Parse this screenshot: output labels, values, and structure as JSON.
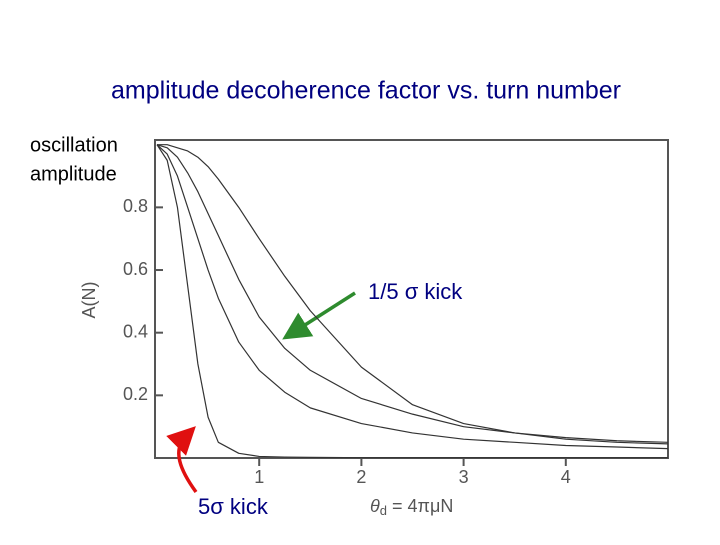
{
  "chart_data": {
    "type": "line",
    "title": "amplitude decoherence factor vs. turn number",
    "y_caption": [
      "oscillation",
      "amplitude"
    ],
    "ylabel": "A(N)",
    "xlabel": [
      "θ",
      "d",
      " = 4πμN"
    ],
    "annotations": [
      "1/5 σ kick",
      "5σ kick"
    ],
    "x": [
      0,
      0.1,
      0.2,
      0.3,
      0.4,
      0.5,
      0.6,
      0.8,
      1,
      1.25,
      1.5,
      2,
      2.5,
      3,
      3.5,
      4,
      4.5,
      5
    ],
    "series": [
      {
        "color": "#333333",
        "values": [
          1,
          0.95,
          0.8,
          0.55,
          0.3,
          0.13,
          0.05,
          0.015,
          0.005,
          0.003,
          0.002,
          0.001,
          0.001,
          0.001,
          0.001,
          0.001,
          0.001,
          0.001
        ]
      },
      {
        "color": "#333333",
        "values": [
          1,
          0.97,
          0.9,
          0.8,
          0.7,
          0.6,
          0.51,
          0.37,
          0.28,
          0.21,
          0.16,
          0.11,
          0.08,
          0.06,
          0.05,
          0.04,
          0.035,
          0.03
        ]
      },
      {
        "color": "#333333",
        "values": [
          1,
          0.99,
          0.96,
          0.91,
          0.85,
          0.78,
          0.71,
          0.57,
          0.45,
          0.35,
          0.28,
          0.19,
          0.14,
          0.1,
          0.08,
          0.06,
          0.05,
          0.045
        ]
      },
      {
        "color": "#333333",
        "values": [
          1,
          1,
          0.99,
          0.98,
          0.96,
          0.93,
          0.89,
          0.8,
          0.7,
          0.58,
          0.47,
          0.29,
          0.17,
          0.11,
          0.08,
          0.065,
          0.055,
          0.05
        ]
      }
    ],
    "xlim": [
      0,
      5
    ],
    "ylim": [
      0,
      1.015
    ],
    "xticks": [
      1,
      2,
      3,
      4
    ],
    "yticks": [
      0.2,
      0.4,
      0.6,
      0.8
    ]
  }
}
